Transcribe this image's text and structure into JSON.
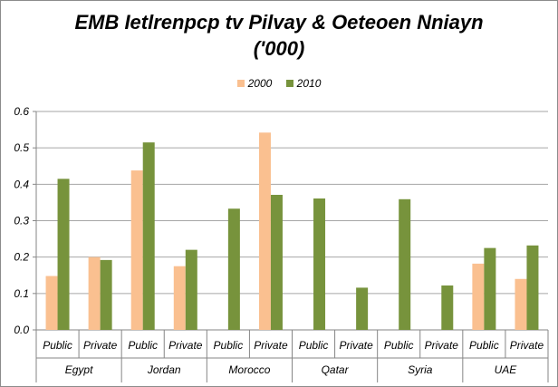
{
  "chart_data": {
    "type": "bar",
    "title_line1": "EMB Ietlrenpcp tv Pilvay & Oeteoen Nniayn",
    "title_line2": "('000)",
    "groups": [
      "Egypt",
      "Jordan",
      "Morocco",
      "Qatar",
      "Syria",
      "UAE"
    ],
    "categories": [
      "Public",
      "Private",
      "Public",
      "Private",
      "Public",
      "Private",
      "Public",
      "Private",
      "Public",
      "Private",
      "Public",
      "Private"
    ],
    "series": [
      {
        "name": "2000",
        "color": "#fac090",
        "values": [
          0.148,
          0.2,
          0.438,
          0.175,
          null,
          0.542,
          null,
          null,
          null,
          null,
          0.182,
          0.14
        ]
      },
      {
        "name": "2010",
        "color": "#77933c",
        "values": [
          0.415,
          0.192,
          0.515,
          0.22,
          0.333,
          0.371,
          0.361,
          0.116,
          0.359,
          0.122,
          0.225,
          0.232
        ]
      }
    ],
    "yticks": [
      "0.0",
      "0.1",
      "0.2",
      "0.3",
      "0.4",
      "0.5",
      "0.6"
    ],
    "ylim": [
      0,
      0.6
    ],
    "grid": true,
    "legend_position": "top"
  }
}
